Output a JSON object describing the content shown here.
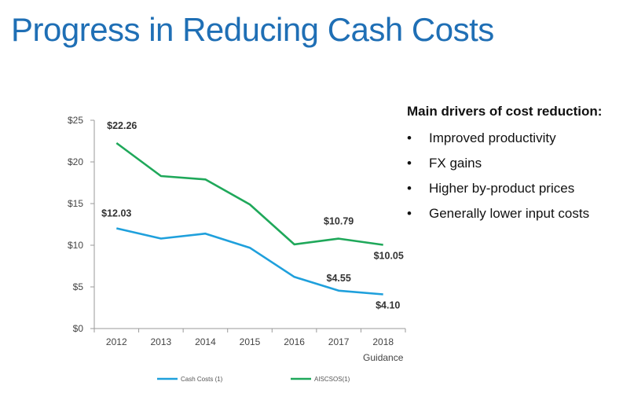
{
  "title": "Progress in Reducing Cash Costs",
  "drivers": {
    "heading": "Main drivers of cost reduction:",
    "items": [
      "Improved productivity",
      "FX gains",
      "Higher by-product prices",
      "Generally lower input costs"
    ]
  },
  "chart_data": {
    "type": "line",
    "categories": [
      "2012",
      "2013",
      "2014",
      "2015",
      "2016",
      "2017",
      "2018"
    ],
    "category_sublabels": [
      "",
      "",
      "",
      "",
      "",
      "",
      "Guidance"
    ],
    "ylim": [
      0,
      25
    ],
    "yticks": [
      0,
      5,
      10,
      15,
      20,
      25
    ],
    "ytick_labels": [
      "$0",
      "$5",
      "$10",
      "$15",
      "$20",
      "$25"
    ],
    "grid": false,
    "legend_position": "bottom",
    "series": [
      {
        "name": "Cash Costs (1)",
        "color": "#1fa0dc",
        "values": [
          12.03,
          10.8,
          11.4,
          9.7,
          6.2,
          4.55,
          4.1
        ],
        "labels": [
          {
            "index": 0,
            "text": "$12.03"
          },
          {
            "index": 5,
            "text": "$4.55"
          },
          {
            "index": 6,
            "text": "$4.10"
          }
        ]
      },
      {
        "name": "AISCSOS(1)",
        "color": "#1fa85a",
        "values": [
          22.26,
          18.3,
          17.9,
          14.9,
          10.1,
          10.79,
          10.05
        ],
        "labels": [
          {
            "index": 0,
            "text": "$22.26"
          },
          {
            "index": 5,
            "text": "$10.79"
          },
          {
            "index": 6,
            "text": "$10.05"
          }
        ]
      }
    ]
  }
}
